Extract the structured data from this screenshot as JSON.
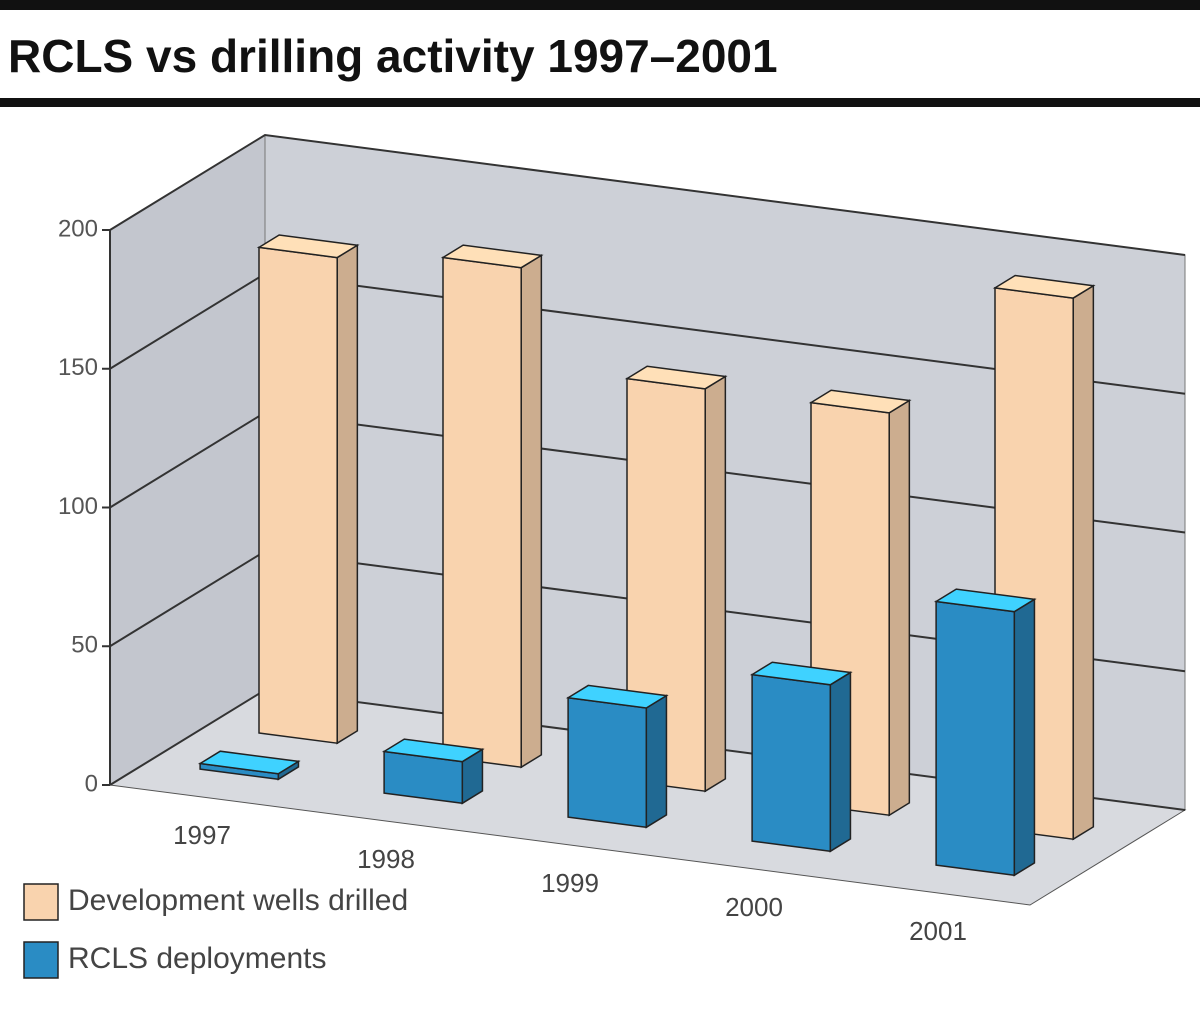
{
  "chart_data": {
    "type": "bar3d",
    "title": "RCLS vs drilling activity 1997–2001",
    "categories": [
      "1997",
      "1998",
      "1999",
      "2000",
      "2001"
    ],
    "series": [
      {
        "name": "Development wells drilled",
        "color": "#f9d3ae",
        "values": [
          175,
          180,
          145,
          145,
          195
        ]
      },
      {
        "name": "RCLS deployments",
        "color": "#2a8cc4",
        "values": [
          2,
          15,
          43,
          60,
          95
        ]
      }
    ],
    "ylim": [
      0,
      200
    ],
    "yticks": [
      0,
      50,
      100,
      150,
      200
    ],
    "grid": true
  }
}
